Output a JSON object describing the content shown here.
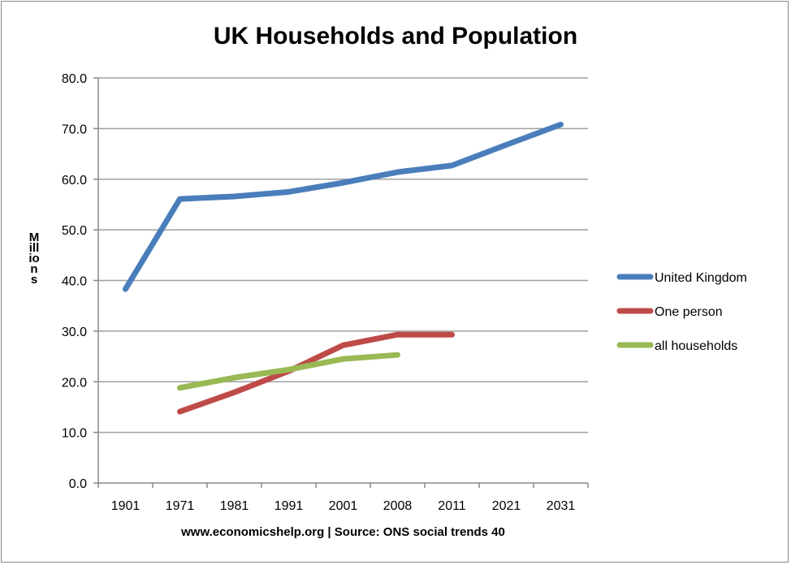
{
  "chart_data": {
    "type": "line",
    "title": "UK Households and Population",
    "xlabel": "www.economicshelp.org | Source: ONS social trends 40",
    "ylabel": "Millions",
    "categories": [
      "1901",
      "1971",
      "1981",
      "1991",
      "2001",
      "2008",
      "2011",
      "2021",
      "2031"
    ],
    "ylim": [
      0,
      80
    ],
    "yticks": [
      "0.0",
      "10.0",
      "20.0",
      "30.0",
      "40.0",
      "50.0",
      "60.0",
      "70.0",
      "80.0"
    ],
    "grid": true,
    "legend_position": "right",
    "series": [
      {
        "name": "United Kingdom",
        "color": "#4a7ebb",
        "values": [
          38.3,
          56.1,
          56.6,
          57.5,
          59.3,
          61.4,
          62.7,
          66.8,
          70.8
        ]
      },
      {
        "name": "One person",
        "color": "#be4b48",
        "values": [
          null,
          14.1,
          17.9,
          22.1,
          27.2,
          29.3,
          29.3,
          null,
          null
        ]
      },
      {
        "name": "all households",
        "color": "#98b954",
        "values": [
          null,
          18.8,
          20.8,
          22.4,
          24.5,
          25.3,
          null,
          null,
          null
        ]
      }
    ]
  }
}
